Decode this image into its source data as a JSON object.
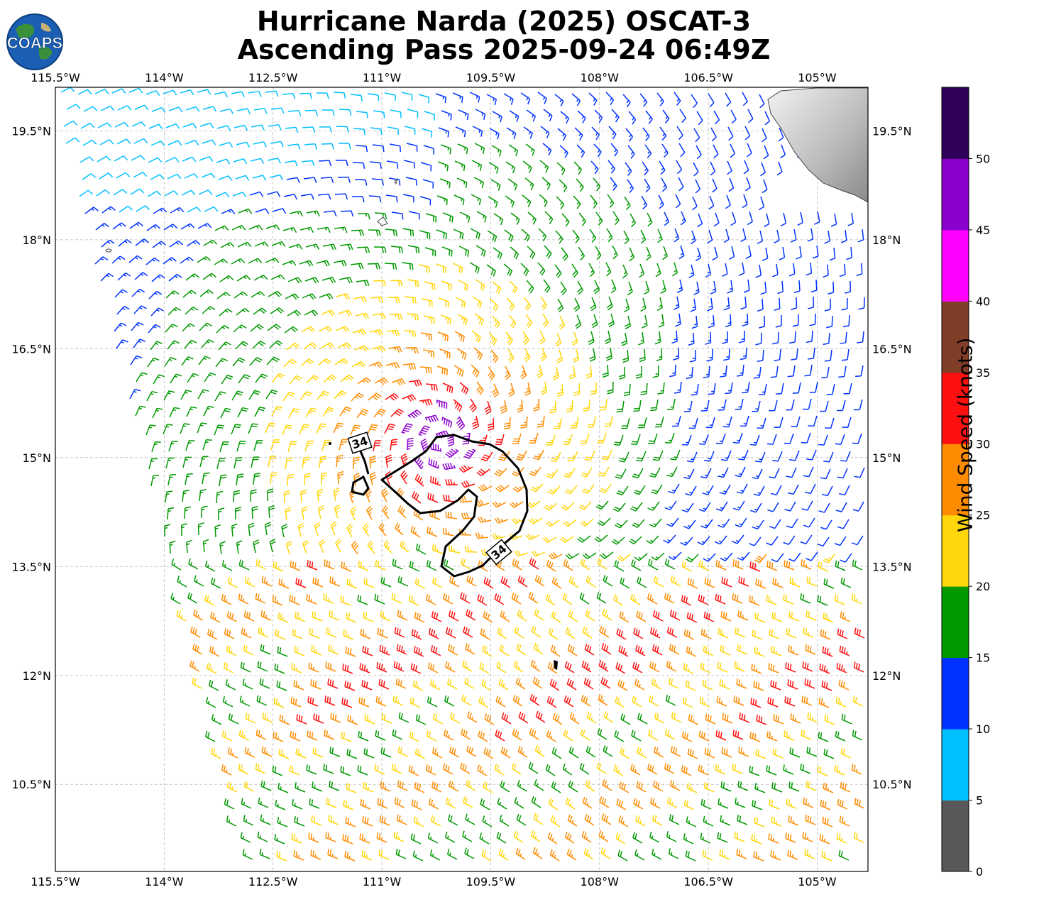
{
  "header": {
    "title_line1": "Hurricane Narda (2025) OSCAT-3",
    "title_line2": "Ascending Pass 2025-09-24 06:49Z",
    "logo_text": "COAPS"
  },
  "map": {
    "lon_labels": [
      "115.5°W",
      "114°W",
      "112.5°W",
      "111°W",
      "109.5°W",
      "108°W",
      "106.5°W",
      "105°W"
    ],
    "lat_labels": [
      "19.5°N",
      "18°N",
      "16.5°N",
      "15°N",
      "13.5°N",
      "12°N",
      "10.5°N"
    ],
    "lon_range": [
      -115.5,
      -104.3
    ],
    "lat_range": [
      9.3,
      20.1
    ],
    "storm_center": {
      "lon": -110.2,
      "lat": 15.25
    },
    "contour_label": "34",
    "contour_level_knots": 34
  },
  "colorbar": {
    "title": "Wind Speed (knots)",
    "tick_labels": [
      "0",
      "5",
      "10",
      "15",
      "20",
      "25",
      "30",
      "35",
      "40",
      "45",
      "50"
    ],
    "colors": [
      "#595959",
      "#00bfff",
      "#0033ff",
      "#009900",
      "#ffd60a",
      "#ff8c00",
      "#ff1010",
      "#803d28",
      "#ff00ff",
      "#8b00cc",
      "#2e0057"
    ]
  }
}
